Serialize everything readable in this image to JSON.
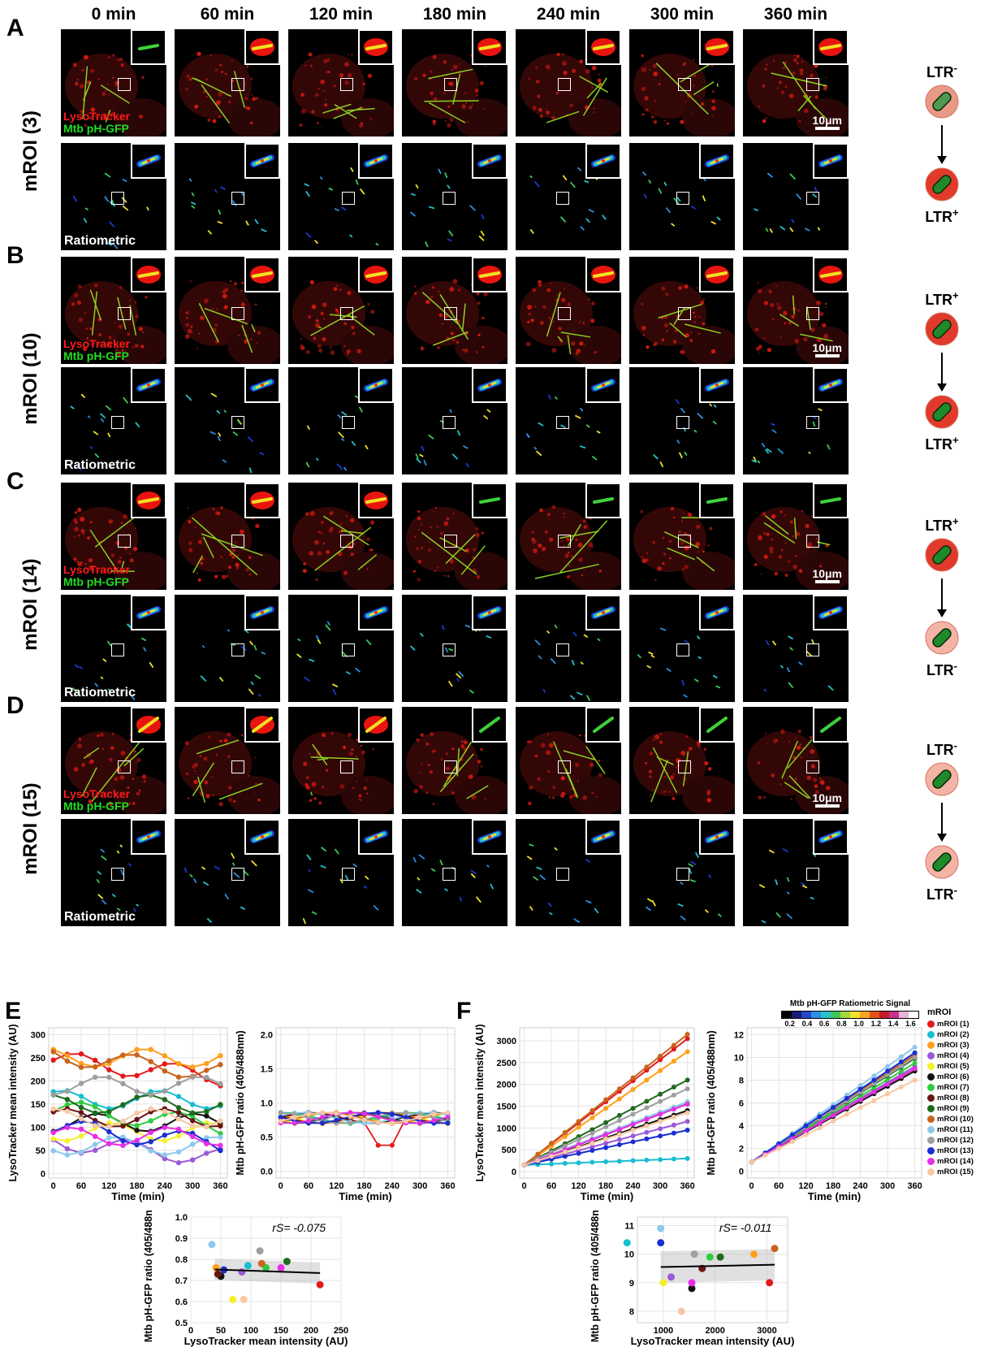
{
  "timepoints": [
    "0 min",
    "60 min",
    "120 min",
    "180 min",
    "240 min",
    "300 min",
    "360 min"
  ],
  "rows": [
    {
      "panel": "A",
      "label": "mROI (3)",
      "top": "LTR",
      "top_sign": "-",
      "bottom": "LTR",
      "bottom_sign": "+",
      "top_cell": "mixed",
      "bottom_cell": "red"
    },
    {
      "panel": "B",
      "label": "mROI (10)",
      "top": "LTR",
      "top_sign": "+",
      "bottom": "LTR",
      "bottom_sign": "+",
      "top_cell": "red",
      "bottom_cell": "red"
    },
    {
      "panel": "C",
      "label": "mROI (14)",
      "top": "LTR",
      "top_sign": "+",
      "bottom": "LTR",
      "bottom_sign": "-",
      "top_cell": "red",
      "bottom_cell": "pale"
    },
    {
      "panel": "D",
      "label": "mROI (15)",
      "top": "LTR",
      "top_sign": "-",
      "bottom": "LTR",
      "bottom_sign": "-",
      "top_cell": "pale",
      "bottom_cell": "pale"
    }
  ],
  "channel_labels": {
    "lysotracker": "LysoTracker",
    "mtb": "Mtb pH-GFP",
    "ratiometric": "Ratiometric",
    "scalebar": "10μm"
  },
  "panel_letters": {
    "E": "E",
    "F": "F"
  },
  "colorbar": {
    "title": "Mtb pH-GFP Ratiometric Signal",
    "ticks": [
      "0.2",
      "0.4",
      "0.6",
      "0.8",
      "1.0",
      "1.2",
      "1.4",
      "1.6"
    ]
  },
  "legend": {
    "title": "mROI",
    "entries": [
      "mROI (1)",
      "mROI (2)",
      "mROI (3)",
      "mROI (4)",
      "mROI (5)",
      "mROI (6)",
      "mROI (7)",
      "mROI (8)",
      "mROI (9)",
      "mROI (10)",
      "mROI (11)",
      "mROI (12)",
      "mROI (13)",
      "mROI (14)",
      "mROI (15)"
    ],
    "colors": [
      "#e41a1c",
      "#17becf",
      "#ff9f1c",
      "#9b59d6",
      "#f5ef2a",
      "#111111",
      "#2ecc40",
      "#6b1414",
      "#1e6b1e",
      "#c8641e",
      "#8ec8ee",
      "#9e9e9e",
      "#1a2fd0",
      "#e62ee6",
      "#f6c8a6"
    ]
  },
  "chart_data": [
    {
      "id": "E-left",
      "type": "line",
      "xlabel": "Time (min)",
      "ylabel": "LysoTracker mean intensity (AU)",
      "x_ticks": [
        0,
        60,
        120,
        180,
        240,
        300,
        360
      ],
      "y_ticks": [
        0,
        50,
        100,
        150,
        200,
        250,
        300
      ],
      "xlim": [
        -10,
        375
      ],
      "ylim": [
        -10,
        315
      ]
    },
    {
      "id": "E-right",
      "type": "line",
      "xlabel": "Time (min)",
      "ylabel": "Mtb pH-GFP ratio (405/488nm)",
      "x_ticks": [
        0,
        60,
        120,
        180,
        240,
        300,
        360
      ],
      "y_ticks": [
        "0.0",
        "0.5",
        "1.0",
        "1.5",
        "2.0"
      ],
      "xlim": [
        -10,
        375
      ],
      "ylim": [
        -0.1,
        2.1
      ]
    },
    {
      "id": "F-left",
      "type": "line",
      "xlabel": "Time (min)",
      "ylabel": "LysoTracker mean intensity (AU)",
      "x_ticks": [
        0,
        60,
        120,
        180,
        240,
        300,
        360
      ],
      "y_ticks": [
        0,
        500,
        1000,
        1500,
        2000,
        2500,
        3000
      ],
      "xlim": [
        -10,
        375
      ],
      "ylim": [
        -150,
        3300
      ],
      "series_end": [
        3050,
        300,
        2750,
        1150,
        1600,
        1400,
        1600,
        1550,
        2100,
        3150,
        1600,
        1900,
        950,
        1550,
        1350
      ]
    },
    {
      "id": "F-right",
      "type": "line",
      "xlabel": "Time (min)",
      "ylabel": "Mtb pH-GFP ratio (405/488nm)",
      "x_ticks": [
        0,
        60,
        120,
        180,
        240,
        300,
        360
      ],
      "y_ticks": [
        0,
        2,
        4,
        6,
        8,
        10,
        12
      ],
      "xlim": [
        -10,
        375
      ],
      "ylim": [
        -0.6,
        12.6
      ],
      "series_end": [
        9.0,
        10.4,
        10.0,
        9.2,
        9.0,
        8.8,
        9.5,
        9.0,
        9.9,
        10.2,
        10.9,
        10.0,
        10.4,
        9.0,
        8.0
      ]
    },
    {
      "id": "E-bottom",
      "type": "scatter",
      "xlabel": "LysoTracker mean intensity (AU)",
      "ylabel": "Mtb pH-GFP ratio (405/488nm)",
      "annotation": "rS= -0.075",
      "x_ticks": [
        0,
        50,
        100,
        150,
        200,
        250
      ],
      "y_ticks": [
        "0.5",
        "0.6",
        "0.7",
        "0.8",
        "0.9",
        "1.0"
      ],
      "xlim": [
        0,
        250
      ],
      "ylim": [
        0.5,
        1.0
      ],
      "x": [
        215,
        95,
        42,
        85,
        70,
        50,
        125,
        45,
        160,
        118,
        35,
        115,
        55,
        150,
        88
      ],
      "y": [
        0.68,
        0.77,
        0.76,
        0.74,
        0.61,
        0.72,
        0.76,
        0.73,
        0.79,
        0.78,
        0.87,
        0.84,
        0.75,
        0.76,
        0.61
      ],
      "fit": {
        "x": [
          40,
          215
        ],
        "y": [
          0.752,
          0.735
        ]
      }
    },
    {
      "id": "F-bottom",
      "type": "scatter",
      "xlabel": "LysoTracker mean intensity (AU)",
      "ylabel": "Mtb pH-GFP ratio (405/488nm)",
      "annotation": "rS= -0.011",
      "x_ticks": [
        1000,
        2000,
        3000
      ],
      "y_ticks": [
        "8",
        "9",
        "10",
        "11"
      ],
      "xlim": [
        500,
        3400
      ],
      "ylim": [
        7.6,
        11.3
      ],
      "x": [
        3050,
        300,
        2750,
        1150,
        1000,
        1550,
        1900,
        1750,
        2100,
        3150,
        950,
        1600,
        950,
        1550,
        1350
      ],
      "y": [
        9.0,
        10.4,
        10.0,
        9.2,
        9.0,
        8.8,
        9.9,
        9.5,
        9.9,
        10.2,
        10.9,
        10.0,
        10.4,
        9.0,
        8.0
      ],
      "fit": {
        "x": [
          950,
          3150
        ],
        "y": [
          9.55,
          9.63
        ]
      }
    }
  ]
}
